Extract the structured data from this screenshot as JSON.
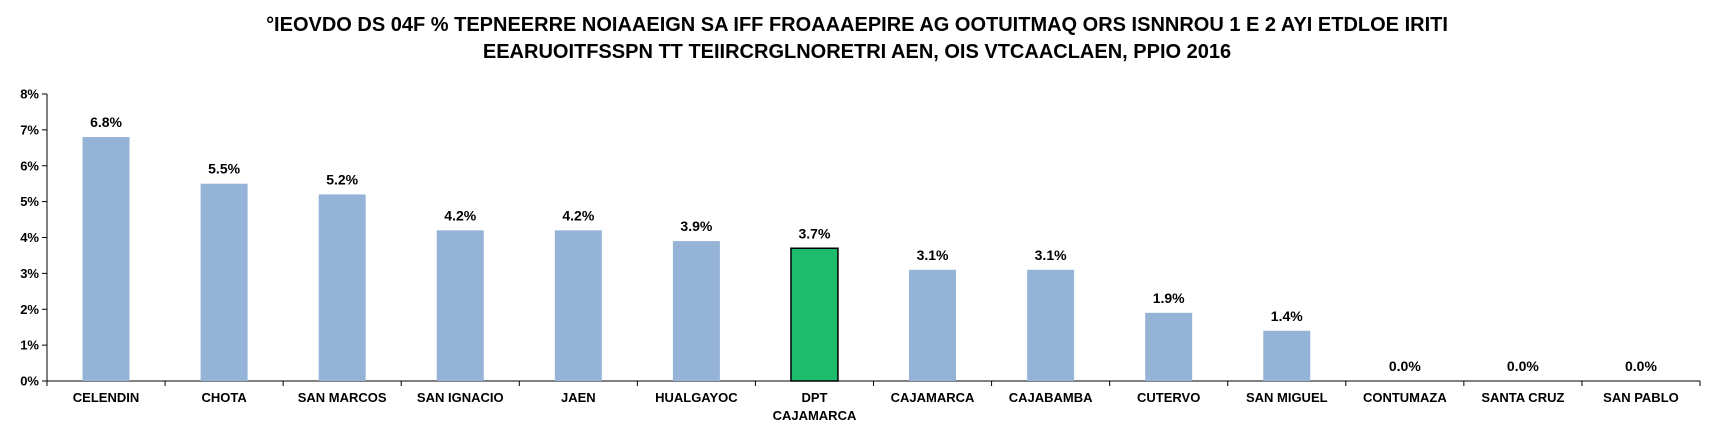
{
  "chart_data": {
    "type": "bar",
    "title_lines": [
      "°IEOVDO DS 04F % TEPNEERRE NOIAAEIGN SA IFF FROAAAEPIRE AG OOTUITMAQ ORS ISNNROU 1 E 2 AYI ETDLOE IRITI",
      "EEARUOITFSSPN TT TEIIRCRGLNORETRI AEN, OIS VTCAACLAEN, PPIO 2016"
    ],
    "categories": [
      [
        "CELENDIN"
      ],
      [
        "CHOTA"
      ],
      [
        "SAN MARCOS"
      ],
      [
        "SAN IGNACIO"
      ],
      [
        "JAEN"
      ],
      [
        "HUALGAYOC"
      ],
      [
        "DPT",
        "CAJAMARCA"
      ],
      [
        "CAJAMARCA"
      ],
      [
        "CAJABAMBA"
      ],
      [
        "CUTERVO"
      ],
      [
        "SAN MIGUEL"
      ],
      [
        "CONTUMAZA"
      ],
      [
        "SANTA CRUZ"
      ],
      [
        "SAN PABLO"
      ]
    ],
    "values": [
      6.8,
      5.5,
      5.2,
      4.2,
      4.2,
      3.9,
      3.7,
      3.1,
      3.1,
      1.9,
      1.4,
      0.0,
      0.0,
      0.0
    ],
    "value_labels": [
      "6.8%",
      "5.5%",
      "5.2%",
      "4.2%",
      "4.2%",
      "3.9%",
      "3.7%",
      "3.1%",
      "3.1%",
      "1.9%",
      "1.4%",
      "0.0%",
      "0.0%",
      "0.0%"
    ],
    "highlight_index": 6,
    "colors": {
      "bar": "#95B3D7",
      "highlight": "#1CBC6C",
      "highlight_border": "#000000",
      "axis": "#000000"
    },
    "y_ticks": [
      "0%",
      "1%",
      "2%",
      "3%",
      "4%",
      "5%",
      "6%",
      "7%",
      "8%"
    ],
    "ylim": [
      0,
      8
    ],
    "grid": false,
    "legend": "none"
  }
}
